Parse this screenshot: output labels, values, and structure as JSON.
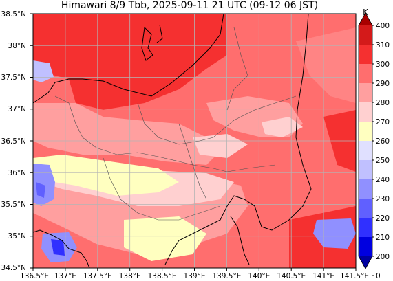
{
  "title": "Himawari 8/9 Tbb, 2025-09-11 21 UTC (09-12 06 JST)",
  "lat_ticks": [
    "38.5°N",
    "38°N",
    "37.5°N",
    "37°N",
    "36.5°N",
    "36°N",
    "35.5°N",
    "35°N",
    "34.5°N"
  ],
  "lon_ticks": [
    "136.5°E",
    "137°E",
    "137.5°E",
    "138°E",
    "138.5°E",
    "139°E",
    "139.5°E",
    "140°E",
    "140.5°E",
    "141°E",
    "141.5°E"
  ],
  "extent": {
    "lon_min": 136.5,
    "lon_max": 141.5,
    "lat_min": 34.5,
    "lat_max": 38.5
  },
  "colorbar": {
    "unit": "K",
    "labels": [
      "400",
      "310",
      "300",
      "290",
      "280",
      "270",
      "260",
      "250",
      "240",
      "230",
      "220",
      "210",
      "200",
      "0"
    ],
    "colors": [
      "#a80000",
      "#d41a1a",
      "#f53030",
      "#ff6e6e",
      "#ff9f9f",
      "#ffd0d0",
      "#ffffc0",
      "#e0e0ff",
      "#c0c0ff",
      "#9090ff",
      "#6060ff",
      "#3030ff",
      "#0000e0",
      "#0000a0"
    ]
  },
  "colors": {
    "grid": "#b4b4b4",
    "coast": "#000000",
    "prefecture": "#505050"
  }
}
